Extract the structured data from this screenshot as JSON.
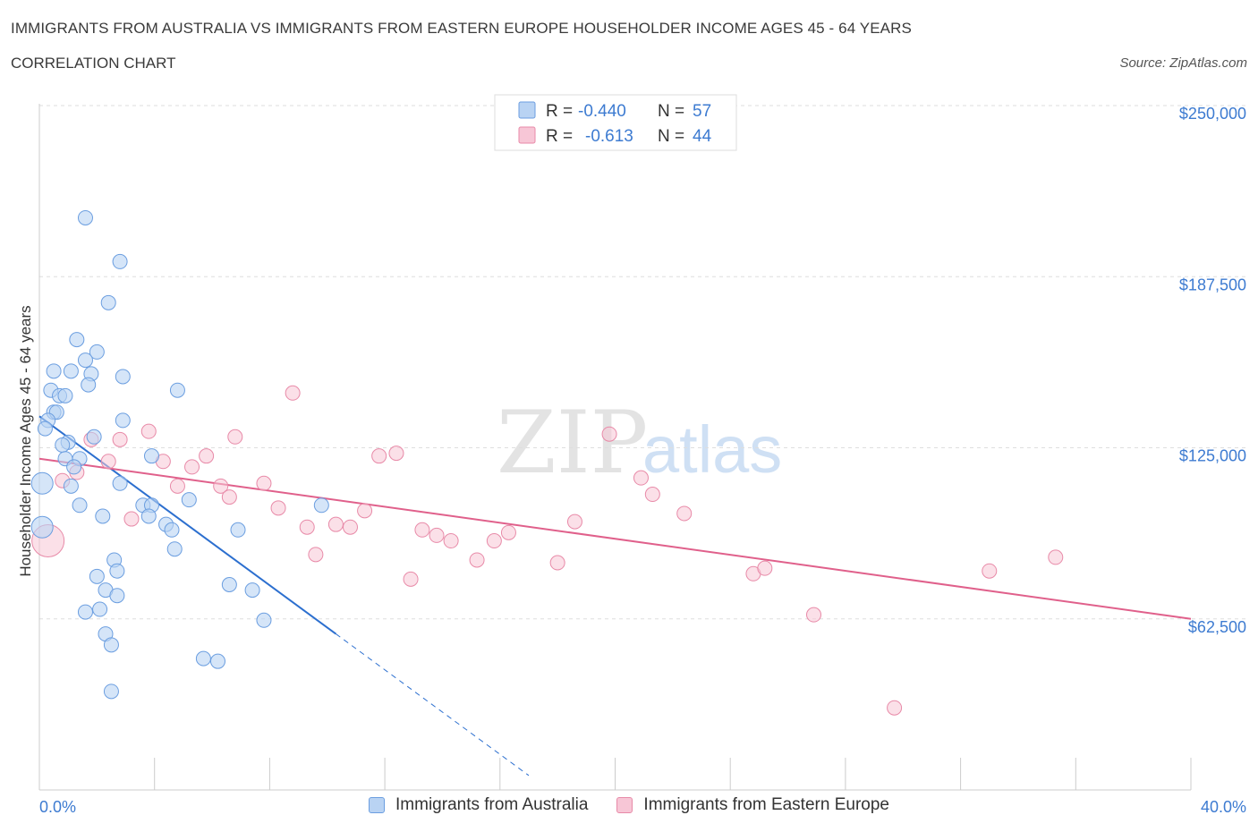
{
  "header": {
    "title": "IMMIGRANTS FROM AUSTRALIA VS IMMIGRANTS FROM EASTERN EUROPE HOUSEHOLDER INCOME AGES 45 - 64 YEARS",
    "subtitle": "CORRELATION CHART",
    "source": "Source: ZipAtlas.com"
  },
  "legend_box": {
    "rows": [
      {
        "r_label": "R =",
        "r_value": "-0.440",
        "n_label": "N =",
        "n_value": "57"
      },
      {
        "r_label": "R =",
        "r_value": "-0.613",
        "n_label": "N =",
        "n_value": "44"
      }
    ]
  },
  "watermark": {
    "zip": "ZIP",
    "atlas": "atlas"
  },
  "colors": {
    "australia_fill": "#b9d3f3",
    "australia_stroke": "#6b9ee0",
    "australia_line": "#2c6fcf",
    "eeurope_fill": "#f7c6d6",
    "eeurope_stroke": "#e88aa8",
    "eeurope_line": "#e0608b",
    "axis_text": "#3d7bd1"
  },
  "chart_data": {
    "type": "scatter",
    "title": "IMMIGRANTS FROM AUSTRALIA VS IMMIGRANTS FROM EASTERN EUROPE HOUSEHOLDER INCOME AGES 45 - 64 YEARS",
    "xlabel": "",
    "ylabel": "Householder Income Ages 45 - 64 years",
    "xlim": [
      0,
      40
    ],
    "ylim": [
      0,
      250000
    ],
    "x_tick_labels": [
      "0.0%",
      "40.0%"
    ],
    "y_ticks": [
      62500,
      125000,
      187500,
      250000
    ],
    "y_tick_labels": [
      "$62,500",
      "$125,000",
      "$187,500",
      "$250,000"
    ],
    "grid": true,
    "legend_position": "bottom",
    "series": [
      {
        "name": "Immigrants from Australia",
        "R": -0.44,
        "N": 57,
        "trend": {
          "x_start": 0.0,
          "y_start": 136500,
          "x_end": 10.3,
          "y_end": 57000,
          "dashed_to_x": 17.0
        },
        "points": [
          [
            1.6,
            209000
          ],
          [
            2.8,
            193000
          ],
          [
            2.4,
            178000
          ],
          [
            1.3,
            164500
          ],
          [
            2.0,
            160000
          ],
          [
            1.6,
            157000
          ],
          [
            0.5,
            153000
          ],
          [
            1.1,
            153000
          ],
          [
            1.8,
            152000
          ],
          [
            2.9,
            151000
          ],
          [
            1.7,
            148000
          ],
          [
            0.4,
            146000
          ],
          [
            0.7,
            144000
          ],
          [
            0.9,
            144000
          ],
          [
            4.8,
            146000
          ],
          [
            0.5,
            138000
          ],
          [
            0.6,
            138000
          ],
          [
            0.3,
            135000
          ],
          [
            2.9,
            135000
          ],
          [
            0.2,
            132000
          ],
          [
            1.0,
            127000
          ],
          [
            0.8,
            126000
          ],
          [
            1.9,
            129000
          ],
          [
            0.9,
            121000
          ],
          [
            1.4,
            121000
          ],
          [
            1.1,
            111000
          ],
          [
            0.1,
            112000
          ],
          [
            1.4,
            104000
          ],
          [
            3.6,
            104000
          ],
          [
            3.9,
            104000
          ],
          [
            5.2,
            106000
          ],
          [
            9.8,
            104000
          ],
          [
            2.2,
            100000
          ],
          [
            3.8,
            100000
          ],
          [
            4.4,
            97000
          ],
          [
            0.1,
            96000
          ],
          [
            4.6,
            95000
          ],
          [
            6.9,
            95000
          ],
          [
            4.7,
            88000
          ],
          [
            2.6,
            84000
          ],
          [
            2.7,
            80000
          ],
          [
            2.0,
            78000
          ],
          [
            2.3,
            73000
          ],
          [
            2.7,
            71000
          ],
          [
            6.6,
            75000
          ],
          [
            7.4,
            73000
          ],
          [
            2.1,
            66000
          ],
          [
            1.6,
            65000
          ],
          [
            7.8,
            62000
          ],
          [
            2.3,
            57000
          ],
          [
            2.5,
            53000
          ],
          [
            5.7,
            48000
          ],
          [
            6.2,
            47000
          ],
          [
            2.5,
            36000
          ],
          [
            3.9,
            122000
          ],
          [
            2.8,
            112000
          ],
          [
            1.2,
            118000
          ]
        ]
      },
      {
        "name": "Immigrants from Eastern Europe",
        "R": -0.613,
        "N": 44,
        "trend": {
          "x_start": 0.0,
          "y_start": 121000,
          "x_end": 40.0,
          "y_end": 62500
        },
        "points": [
          [
            0.3,
            91000
          ],
          [
            0.8,
            113000
          ],
          [
            1.3,
            116000
          ],
          [
            1.8,
            128000
          ],
          [
            2.4,
            120000
          ],
          [
            2.8,
            128000
          ],
          [
            3.2,
            99000
          ],
          [
            3.8,
            131000
          ],
          [
            4.3,
            120000
          ],
          [
            4.8,
            111000
          ],
          [
            5.3,
            118000
          ],
          [
            5.8,
            122000
          ],
          [
            6.3,
            111000
          ],
          [
            6.8,
            129000
          ],
          [
            6.6,
            107000
          ],
          [
            7.8,
            112000
          ],
          [
            8.3,
            103000
          ],
          [
            8.8,
            145000
          ],
          [
            9.3,
            96000
          ],
          [
            9.6,
            86000
          ],
          [
            10.3,
            97000
          ],
          [
            10.8,
            96000
          ],
          [
            11.3,
            102000
          ],
          [
            11.8,
            122000
          ],
          [
            12.4,
            123000
          ],
          [
            12.9,
            77000
          ],
          [
            13.3,
            95000
          ],
          [
            13.8,
            93000
          ],
          [
            14.3,
            91000
          ],
          [
            15.2,
            84000
          ],
          [
            15.8,
            91000
          ],
          [
            16.3,
            94000
          ],
          [
            18.0,
            83000
          ],
          [
            18.6,
            98000
          ],
          [
            19.8,
            130000
          ],
          [
            20.9,
            114000
          ],
          [
            21.3,
            108000
          ],
          [
            22.4,
            101000
          ],
          [
            24.8,
            79000
          ],
          [
            25.2,
            81000
          ],
          [
            26.9,
            64000
          ],
          [
            29.7,
            30000
          ],
          [
            33.0,
            80000
          ],
          [
            35.3,
            85000
          ]
        ]
      }
    ]
  }
}
